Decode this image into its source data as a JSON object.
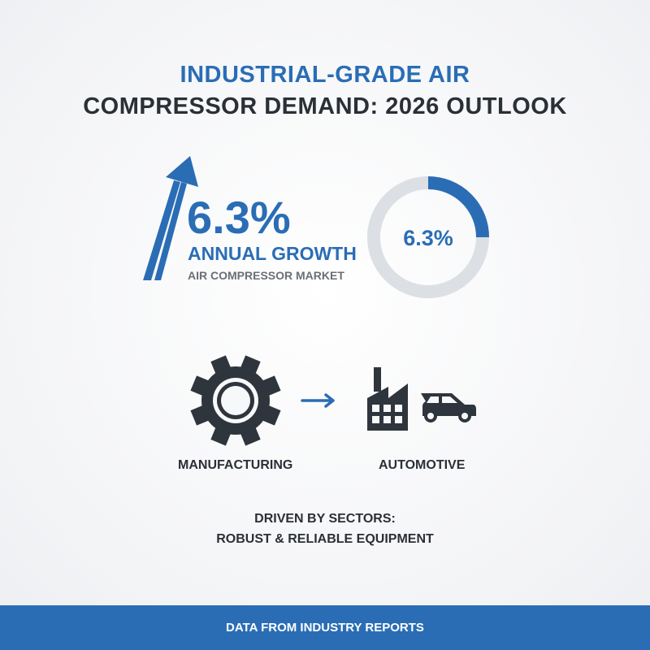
{
  "title": {
    "line1": "INDUSTRIAL-GRADE AIR",
    "line2": "COMPRESSOR DEMAND: 2026 OUTLOOK"
  },
  "growth": {
    "value": "6.3%",
    "label": "ANNUAL GROWTH",
    "sublabel": "AIR COMPRESSOR MARKET"
  },
  "donut": {
    "label": "6.3%",
    "filled_fraction": 0.25,
    "fill_color": "#2a6db5",
    "track_color": "#dcdfe3"
  },
  "sectors": [
    {
      "label": "MANUFACTURING",
      "icon": "gear-icon"
    },
    {
      "label": "AUTOMOTIVE",
      "icon": "factory-car-icon"
    }
  ],
  "driven": {
    "line1": "DRIVEN BY SECTORS:",
    "line2": "ROBUST & RELIABLE EQUIPMENT"
  },
  "footer": {
    "text": "DATA FROM INDUSTRY REPORTS"
  },
  "colors": {
    "accent": "#2a6db5",
    "dark": "#2b2f36"
  }
}
